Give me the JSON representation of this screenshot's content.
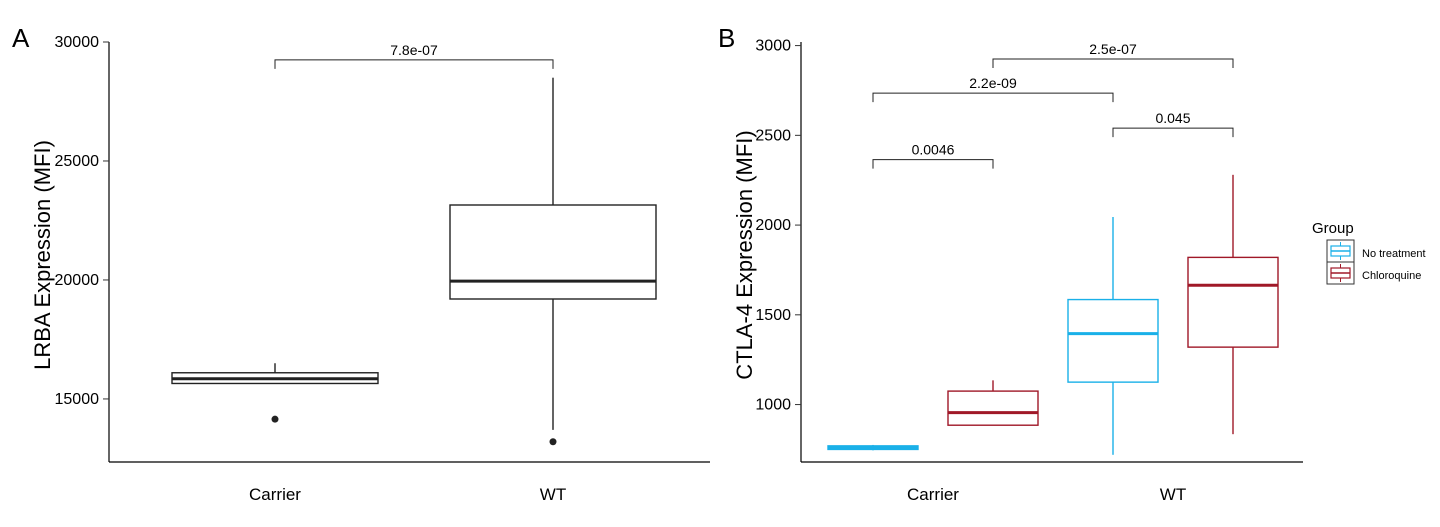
{
  "chart_data": [
    {
      "panel_label": "A",
      "type": "box",
      "ylabel": "LRBA Expression (MFI)",
      "ylim": [
        12350,
        30000
      ],
      "yticks": [
        15000,
        20000,
        25000,
        30000
      ],
      "categories": [
        "Carrier",
        "WT"
      ],
      "boxes": [
        {
          "category": "Carrier",
          "group": "",
          "whisker_low": 15650,
          "q1": 15650,
          "median": 15850,
          "q3": 16100,
          "whisker_high": 16500,
          "outliers": [
            14150
          ]
        },
        {
          "category": "WT",
          "group": "",
          "whisker_low": 13700,
          "q1": 19200,
          "median": 19950,
          "q3": 23150,
          "whisker_high": 28500,
          "outliers": [
            13200
          ]
        }
      ],
      "comparisons": [
        {
          "from_box": 0,
          "to_box": 1,
          "y": 29250,
          "label": "7.8e-07"
        }
      ],
      "color": "#222222"
    },
    {
      "panel_label": "B",
      "type": "box",
      "ylabel": "CTLA-4 Expression (MFI)",
      "ylim": [
        680,
        3020
      ],
      "yticks": [
        1000,
        1500,
        2000,
        2500,
        3000
      ],
      "categories": [
        "Carrier",
        "WT"
      ],
      "legend": {
        "title": "Group",
        "position": "right",
        "entries": [
          {
            "name": "No treatment",
            "color": "#1ab0e8"
          },
          {
            "name": "Chloroquine",
            "color": "#a01828"
          }
        ]
      },
      "boxes": [
        {
          "category": "Carrier",
          "group": "No treatment",
          "whisker_low": 745,
          "q1": 750,
          "median": 760,
          "q3": 770,
          "whisker_high": 775,
          "outliers": []
        },
        {
          "category": "Carrier",
          "group": "Chloroquine",
          "whisker_low": 885,
          "q1": 885,
          "median": 955,
          "q3": 1075,
          "whisker_high": 1135,
          "outliers": []
        },
        {
          "category": "WT",
          "group": "No treatment",
          "whisker_low": 720,
          "q1": 1125,
          "median": 1395,
          "q3": 1585,
          "whisker_high": 2045,
          "outliers": []
        },
        {
          "category": "WT",
          "group": "Chloroquine",
          "whisker_low": 835,
          "q1": 1320,
          "median": 1665,
          "q3": 1820,
          "whisker_high": 2280,
          "outliers": []
        }
      ],
      "comparisons": [
        {
          "from_box": 0,
          "to_box": 1,
          "y": 2365,
          "label": "0.0046"
        },
        {
          "from_box": 0,
          "to_box": 2,
          "y": 2735,
          "label": "2.2e-09"
        },
        {
          "from_box": 2,
          "to_box": 3,
          "y": 2540,
          "label": "0.045"
        },
        {
          "from_box": 1,
          "to_box": 3,
          "y": 2925,
          "label": "2.5e-07"
        }
      ]
    }
  ]
}
